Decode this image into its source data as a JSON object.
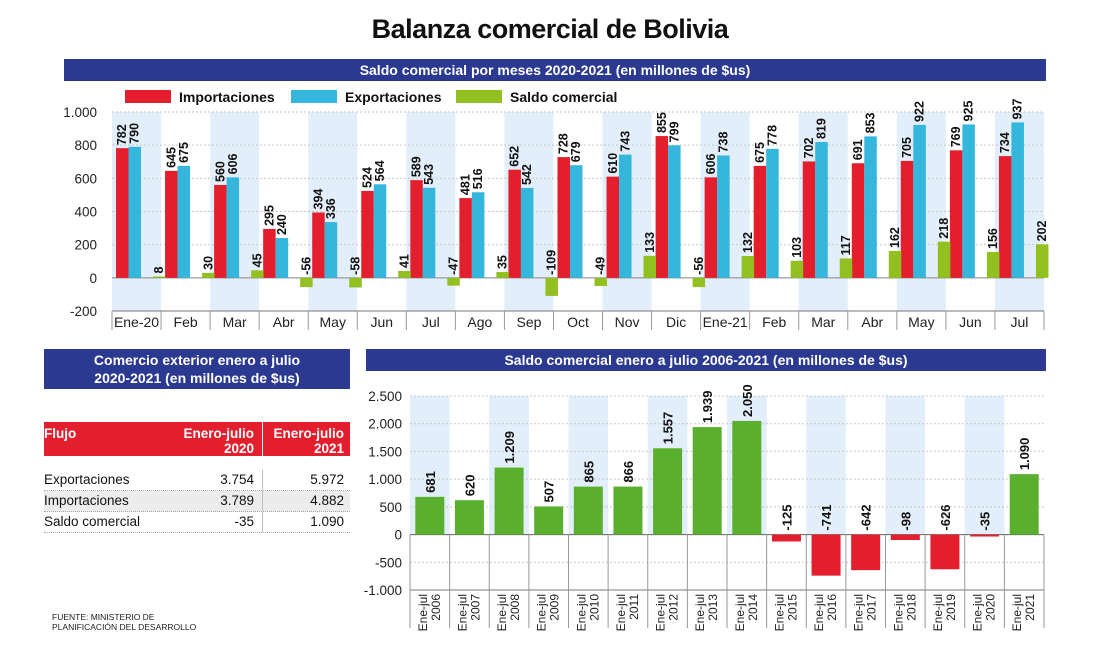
{
  "title": "Balanza comercial de Bolivia",
  "source_lines": [
    "FUENTE: MINISTERIO DE",
    "PLANIFICACIÓN DEL DESARROLLO"
  ],
  "table_section": {
    "title_line1": "Comercio exterior enero a julio",
    "title_line2": "2020-2021 (en millones de $us)",
    "headers": [
      "Flujo",
      "Enero-julio 2020",
      "Enero-julio 2021"
    ],
    "rows": [
      [
        "Exportaciones",
        "3.754",
        "5.972"
      ],
      [
        "Importaciones",
        "3.789",
        "4.882"
      ],
      [
        "Saldo comercial",
        "-35",
        "1.090"
      ]
    ]
  },
  "chart_data": [
    {
      "type": "bar",
      "title": "Saldo comercial por meses 2020-2021 (en millones de $us)",
      "categories": [
        "Ene-20",
        "Feb",
        "Mar",
        "Abr",
        "May",
        "Jun",
        "Jul",
        "Ago",
        "Sep",
        "Oct",
        "Nov",
        "Dic",
        "Ene-21",
        "Feb",
        "Mar",
        "Abr",
        "May",
        "Jun",
        "Jul"
      ],
      "series": [
        {
          "name": "Importaciones",
          "color": "#e31e2d",
          "values": [
            782,
            645,
            560,
            295,
            394,
            524,
            589,
            481,
            652,
            728,
            610,
            855,
            606,
            675,
            702,
            691,
            705,
            769,
            734
          ]
        },
        {
          "name": "Exportaciones",
          "color": "#35b6dc",
          "values": [
            790,
            675,
            606,
            240,
            336,
            564,
            543,
            516,
            542,
            679,
            743,
            799,
            738,
            778,
            819,
            853,
            922,
            925,
            937
          ]
        },
        {
          "name": "Saldo comercial",
          "color": "#92c020",
          "values": [
            8,
            30,
            45,
            -56,
            -58,
            41,
            -47,
            35,
            -109,
            -49,
            133,
            -56,
            132,
            103,
            117,
            162,
            218,
            156,
            202
          ]
        }
      ],
      "ylim": [
        -200,
        1000
      ],
      "yticks": [
        -200,
        0,
        200,
        400,
        600,
        800,
        1000
      ],
      "ytick_labels": [
        "-200",
        "0",
        "200",
        "400",
        "600",
        "800",
        "1.000"
      ],
      "legend": "top-left",
      "grid": true
    },
    {
      "type": "bar",
      "title": "Saldo comercial enero a julio 2006-2021 (en millones de $us)",
      "categories": [
        "Ene-jul 2006",
        "Ene-jul 2007",
        "Ene-jul 2008",
        "Ene-jul 2009",
        "Ene-jul 2010",
        "Ene-jul 2011",
        "Ene-jul 2012",
        "Ene-jul 2013",
        "Ene-jul 2014",
        "Ene-jul 2015",
        "Ene-jul 2016",
        "Ene-jul 2017",
        "Ene-jul 2018",
        "Ene-jul 2019",
        "Ene-jul 2020",
        "Ene-jul 2021"
      ],
      "category_lines": [
        [
          "Ene-jul",
          "2006"
        ],
        [
          "Ene-jul",
          "2007"
        ],
        [
          "Ene-jul",
          "2008"
        ],
        [
          "Ene-jul",
          "2009"
        ],
        [
          "Ene-jul",
          "2010"
        ],
        [
          "Ene-jul",
          "2011"
        ],
        [
          "Ene-jul",
          "2012"
        ],
        [
          "Ene-jul",
          "2013"
        ],
        [
          "Ene-jul",
          "2014"
        ],
        [
          "Ene-jul",
          "2015"
        ],
        [
          "Ene-jul",
          "2016"
        ],
        [
          "Ene-jul",
          "2017"
        ],
        [
          "Ene-jul",
          "2018"
        ],
        [
          "Ene-jul",
          "2019"
        ],
        [
          "Ene-jul",
          "2020"
        ],
        [
          "Ene-jul",
          "2021"
        ]
      ],
      "values": [
        681,
        620,
        1209,
        507,
        865,
        866,
        1557,
        1939,
        2050,
        -125,
        -741,
        -642,
        -98,
        -626,
        -35,
        1090
      ],
      "value_labels": [
        "681",
        "620",
        "1.209",
        "507",
        "865",
        "866",
        "1.557",
        "1.939",
        "2.050",
        "-125",
        "-741",
        "-642",
        "-98",
        "-626",
        "-35",
        "1.090"
      ],
      "positive_color": "#5aaf2e",
      "negative_color": "#e31e2d",
      "ylim": [
        -1000,
        2500
      ],
      "yticks": [
        -1000,
        -500,
        0,
        500,
        1000,
        1500,
        2000,
        2500
      ],
      "ytick_labels": [
        "-1.000",
        "-500",
        "0",
        "500",
        "1.000",
        "1.500",
        "2.000",
        "2.500"
      ],
      "grid": true
    }
  ]
}
